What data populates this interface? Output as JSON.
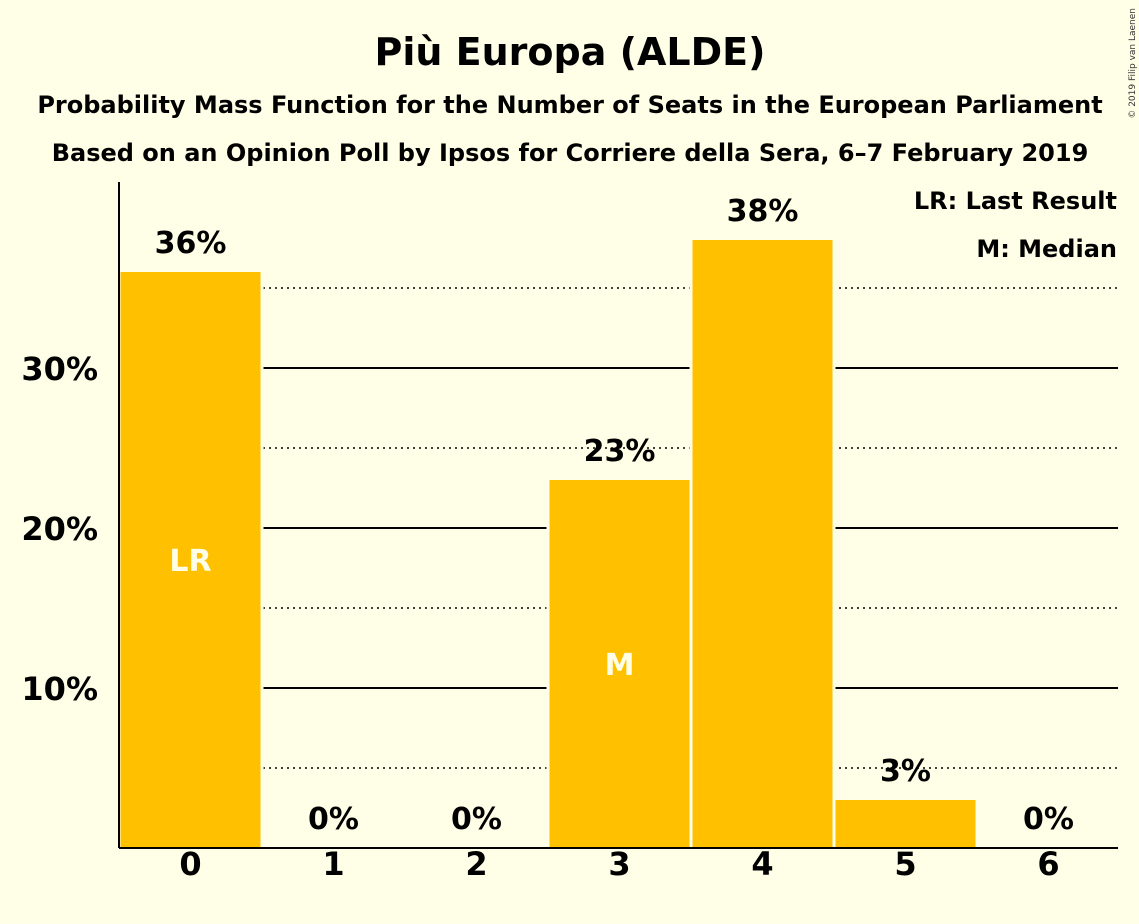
{
  "chart_data": {
    "type": "bar",
    "title": "Più Europa (ALDE)",
    "subtitle": "Probability Mass Function for the Number of Seats in the European Parliament",
    "subtitle2": "Based on an Opinion Poll by Ipsos for Corriere della Sera, 6–7 February 2019",
    "categories": [
      "0",
      "1",
      "2",
      "3",
      "4",
      "5",
      "6"
    ],
    "values": [
      36,
      0,
      0,
      23,
      38,
      3,
      0
    ],
    "value_labels": [
      "36%",
      "0%",
      "0%",
      "23%",
      "38%",
      "3%",
      "0%"
    ],
    "bar_markers": [
      {
        "category": "0",
        "text": "LR"
      },
      {
        "category": "3",
        "text": "M"
      }
    ],
    "yticks": [
      {
        "value": 10,
        "label": "10%"
      },
      {
        "value": 20,
        "label": "20%"
      },
      {
        "value": 30,
        "label": "30%"
      }
    ],
    "minor_gridlines": [
      5,
      15,
      25,
      35
    ],
    "ylim": [
      0,
      41
    ],
    "legend": [
      "LR: Last Result",
      "M: Median"
    ],
    "legend_position": "top-right",
    "bar_color": "#FFC000",
    "copyright": "© 2019 Filip van Laenen"
  }
}
